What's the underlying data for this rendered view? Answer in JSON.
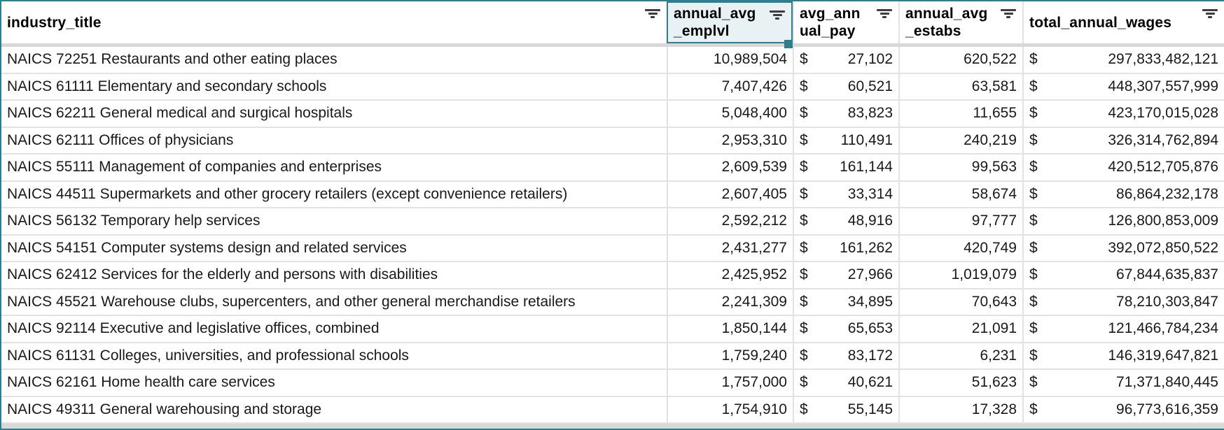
{
  "app": {
    "name": "spreadsheet-grid"
  },
  "colors": {
    "accent": "#2e7e8d",
    "selected_header_fill": "#e8f2f5",
    "grid_line": "#e2e2e2",
    "freeze_bar": "#d8d8d8",
    "cell_text": "#191919",
    "header_text": "#000000",
    "row_background": "#ffffff"
  },
  "icons": {
    "column_filter": "filter-icon",
    "selection_handle": "selection-fill-handle"
  },
  "header": {
    "columns": [
      {
        "id": "industry_title",
        "label": "industry_title",
        "selected": false
      },
      {
        "id": "annual_avg_emplvl",
        "label": "annual_avg_emplvl",
        "selected": true
      },
      {
        "id": "avg_annual_pay",
        "label": "avg_annual_pay",
        "selected": false,
        "currency_prefix": "$"
      },
      {
        "id": "annual_avg_estabs",
        "label": "annual_avg_estabs",
        "selected": false
      },
      {
        "id": "total_annual_wages",
        "label": "total_annual_wages",
        "selected": false,
        "currency_prefix": "$"
      }
    ]
  },
  "rows": [
    {
      "industry_title": "NAICS 72251 Restaurants and other eating places",
      "annual_avg_emplvl": "10,989,504",
      "avg_annual_pay": "27,102",
      "annual_avg_estabs": "620,522",
      "total_annual_wages": "297,833,482,121"
    },
    {
      "industry_title": "NAICS 61111 Elementary and secondary schools",
      "annual_avg_emplvl": "7,407,426",
      "avg_annual_pay": "60,521",
      "annual_avg_estabs": "63,581",
      "total_annual_wages": "448,307,557,999"
    },
    {
      "industry_title": "NAICS 62211 General medical and surgical hospitals",
      "annual_avg_emplvl": "5,048,400",
      "avg_annual_pay": "83,823",
      "annual_avg_estabs": "11,655",
      "total_annual_wages": "423,170,015,028"
    },
    {
      "industry_title": "NAICS 62111 Offices of physicians",
      "annual_avg_emplvl": "2,953,310",
      "avg_annual_pay": "110,491",
      "annual_avg_estabs": "240,219",
      "total_annual_wages": "326,314,762,894"
    },
    {
      "industry_title": "NAICS 55111 Management of companies and enterprises",
      "annual_avg_emplvl": "2,609,539",
      "avg_annual_pay": "161,144",
      "annual_avg_estabs": "99,563",
      "total_annual_wages": "420,512,705,876"
    },
    {
      "industry_title": "NAICS 44511 Supermarkets and other grocery retailers (except convenience retailers)",
      "annual_avg_emplvl": "2,607,405",
      "avg_annual_pay": "33,314",
      "annual_avg_estabs": "58,674",
      "total_annual_wages": "86,864,232,178"
    },
    {
      "industry_title": "NAICS 56132 Temporary help services",
      "annual_avg_emplvl": "2,592,212",
      "avg_annual_pay": "48,916",
      "annual_avg_estabs": "97,777",
      "total_annual_wages": "126,800,853,009"
    },
    {
      "industry_title": "NAICS 54151 Computer systems design and related services",
      "annual_avg_emplvl": "2,431,277",
      "avg_annual_pay": "161,262",
      "annual_avg_estabs": "420,749",
      "total_annual_wages": "392,072,850,522"
    },
    {
      "industry_title": "NAICS 62412 Services for the elderly and persons with disabilities",
      "annual_avg_emplvl": "2,425,952",
      "avg_annual_pay": "27,966",
      "annual_avg_estabs": "1,019,079",
      "total_annual_wages": "67,844,635,837"
    },
    {
      "industry_title": "NAICS 45521 Warehouse clubs, supercenters, and other general merchandise retailers",
      "annual_avg_emplvl": "2,241,309",
      "avg_annual_pay": "34,895",
      "annual_avg_estabs": "70,643",
      "total_annual_wages": "78,210,303,847"
    },
    {
      "industry_title": "NAICS 92114 Executive and legislative offices, combined",
      "annual_avg_emplvl": "1,850,144",
      "avg_annual_pay": "65,653",
      "annual_avg_estabs": "21,091",
      "total_annual_wages": "121,466,784,234"
    },
    {
      "industry_title": "NAICS 61131 Colleges, universities, and professional schools",
      "annual_avg_emplvl": "1,759,240",
      "avg_annual_pay": "83,172",
      "annual_avg_estabs": "6,231",
      "total_annual_wages": "146,319,647,821"
    },
    {
      "industry_title": "NAICS 62161 Home health care services",
      "annual_avg_emplvl": "1,757,000",
      "avg_annual_pay": "40,621",
      "annual_avg_estabs": "51,623",
      "total_annual_wages": "71,371,840,445"
    },
    {
      "industry_title": "NAICS 49311 General warehousing and storage",
      "annual_avg_emplvl": "1,754,910",
      "avg_annual_pay": "55,145",
      "annual_avg_estabs": "17,328",
      "total_annual_wages": "96,773,616,359"
    }
  ]
}
